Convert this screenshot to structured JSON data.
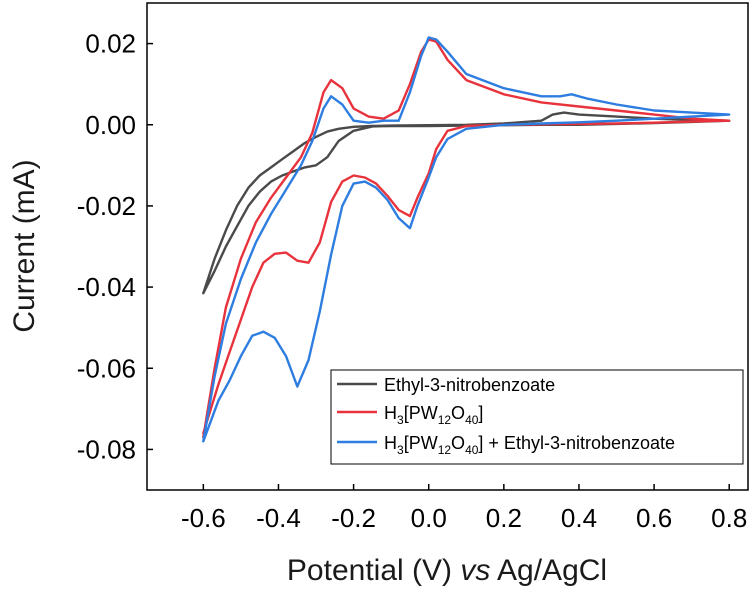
{
  "chart_data": {
    "type": "line",
    "title": "",
    "xlabel": {
      "prefix": "Potential (V) ",
      "italic": "vs",
      "suffix": " Ag/AgCl"
    },
    "ylabel": "Current (mA)",
    "xlim": [
      -0.75,
      0.85
    ],
    "ylim": [
      -0.09,
      0.03
    ],
    "x_ticks": [
      -0.6,
      -0.4,
      -0.2,
      0.0,
      0.2,
      0.4,
      0.6,
      0.8
    ],
    "x_tick_labels": [
      "-0.6",
      "-0.4",
      "-0.2",
      "0.0",
      "0.2",
      "0.4",
      "0.6",
      "0.8"
    ],
    "y_ticks": [
      0.02,
      0.0,
      -0.02,
      -0.04,
      -0.06,
      -0.08
    ],
    "y_tick_labels": [
      "0.02",
      "0.00",
      "-0.02",
      "-0.04",
      "-0.06",
      "-0.08"
    ],
    "grid": false,
    "legend_position": "bottom-right",
    "series": [
      {
        "name": "Ethyl-3-nitrobenzoate",
        "legend": [
          {
            "t": "Ethyl-3-nitrobenzoate"
          }
        ],
        "color": "#4a4a4a",
        "x": [
          -0.6,
          -0.57,
          -0.54,
          -0.51,
          -0.48,
          -0.45,
          -0.42,
          -0.39,
          -0.36,
          -0.33,
          -0.3,
          -0.27,
          -0.24,
          -0.2,
          -0.15,
          -0.1,
          0.0,
          0.1,
          0.2,
          0.3,
          0.33,
          0.36,
          0.4,
          0.5,
          0.6,
          0.7,
          0.8,
          0.7,
          0.6,
          0.5,
          0.4,
          0.3,
          0.2,
          0.1,
          0.0,
          -0.1,
          -0.15,
          -0.2,
          -0.24,
          -0.27,
          -0.3,
          -0.33,
          -0.36,
          -0.39,
          -0.42,
          -0.45,
          -0.48,
          -0.51,
          -0.54,
          -0.57,
          -0.6
        ],
        "y": [
          -0.0415,
          -0.033,
          -0.026,
          -0.02,
          -0.0155,
          -0.0125,
          -0.0105,
          -0.0085,
          -0.0065,
          -0.0045,
          -0.003,
          -0.0017,
          -0.001,
          -0.0005,
          -0.0003,
          -0.0002,
          -0.0001,
          0.0,
          0.0003,
          0.001,
          0.0025,
          0.003,
          0.0025,
          0.002,
          0.0015,
          0.0012,
          0.001,
          0.0007,
          0.0004,
          0.0002,
          0.0,
          0.0,
          -0.0001,
          -0.0002,
          -0.0003,
          -0.0003,
          -0.0004,
          -0.0015,
          -0.004,
          -0.008,
          -0.01,
          -0.0105,
          -0.0115,
          -0.0125,
          -0.014,
          -0.0165,
          -0.02,
          -0.025,
          -0.03,
          -0.036,
          -0.0415
        ]
      },
      {
        "name": "H3[PW12O40]",
        "legend": [
          {
            "t": "H"
          },
          {
            "t": "3",
            "sub": true
          },
          {
            "t": "[PW"
          },
          {
            "t": "12",
            "sub": true
          },
          {
            "t": "O"
          },
          {
            "t": "40",
            "sub": true
          },
          {
            "t": "]"
          }
        ],
        "color": "#e8323c",
        "x": [
          -0.6,
          -0.57,
          -0.54,
          -0.5,
          -0.46,
          -0.42,
          -0.38,
          -0.34,
          -0.31,
          -0.28,
          -0.26,
          -0.23,
          -0.2,
          -0.16,
          -0.12,
          -0.08,
          -0.05,
          -0.02,
          0.0,
          0.02,
          0.05,
          0.1,
          0.2,
          0.3,
          0.4,
          0.5,
          0.6,
          0.7,
          0.8,
          0.7,
          0.6,
          0.5,
          0.4,
          0.3,
          0.2,
          0.1,
          0.05,
          0.02,
          0.0,
          -0.03,
          -0.05,
          -0.08,
          -0.11,
          -0.14,
          -0.17,
          -0.2,
          -0.23,
          -0.26,
          -0.29,
          -0.32,
          -0.35,
          -0.38,
          -0.41,
          -0.44,
          -0.47,
          -0.5,
          -0.53,
          -0.56,
          -0.6
        ],
        "y": [
          -0.077,
          -0.06,
          -0.045,
          -0.033,
          -0.024,
          -0.018,
          -0.013,
          -0.008,
          -0.002,
          0.008,
          0.011,
          0.009,
          0.004,
          0.002,
          0.0015,
          0.0035,
          0.01,
          0.018,
          0.021,
          0.0205,
          0.016,
          0.011,
          0.0075,
          0.0055,
          0.0045,
          0.0035,
          0.0025,
          0.0015,
          0.001,
          0.0008,
          0.0005,
          0.0003,
          0.0002,
          0.0001,
          0.0,
          -0.0003,
          -0.0015,
          -0.006,
          -0.012,
          -0.018,
          -0.0225,
          -0.021,
          -0.0175,
          -0.0145,
          -0.013,
          -0.0125,
          -0.014,
          -0.019,
          -0.029,
          -0.034,
          -0.0335,
          -0.0315,
          -0.0318,
          -0.034,
          -0.04,
          -0.048,
          -0.056,
          -0.064,
          -0.076
        ]
      },
      {
        "name": "H3[PW12O40] + Ethyl-3-nitrobenzoate",
        "legend": [
          {
            "t": "H"
          },
          {
            "t": "3",
            "sub": true
          },
          {
            "t": "[PW"
          },
          {
            "t": "12",
            "sub": true
          },
          {
            "t": "O"
          },
          {
            "t": "40",
            "sub": true
          },
          {
            "t": "] + Ethyl-3-nitrobenzoate"
          }
        ],
        "color": "#2e7de0",
        "x": [
          -0.6,
          -0.57,
          -0.54,
          -0.5,
          -0.46,
          -0.42,
          -0.38,
          -0.34,
          -0.31,
          -0.28,
          -0.26,
          -0.23,
          -0.2,
          -0.16,
          -0.12,
          -0.08,
          -0.05,
          -0.02,
          0.0,
          0.02,
          0.05,
          0.1,
          0.2,
          0.3,
          0.35,
          0.38,
          0.42,
          0.5,
          0.6,
          0.7,
          0.8,
          0.7,
          0.6,
          0.5,
          0.4,
          0.3,
          0.2,
          0.1,
          0.05,
          0.02,
          0.0,
          -0.03,
          -0.05,
          -0.08,
          -0.11,
          -0.14,
          -0.17,
          -0.2,
          -0.23,
          -0.26,
          -0.29,
          -0.32,
          -0.35,
          -0.38,
          -0.41,
          -0.44,
          -0.47,
          -0.5,
          -0.53,
          -0.56,
          -0.6
        ],
        "y": [
          -0.078,
          -0.062,
          -0.049,
          -0.038,
          -0.029,
          -0.022,
          -0.016,
          -0.01,
          -0.004,
          0.004,
          0.007,
          0.005,
          0.001,
          0.0005,
          0.001,
          0.001,
          0.008,
          0.017,
          0.0215,
          0.021,
          0.018,
          0.0125,
          0.009,
          0.007,
          0.007,
          0.0075,
          0.0065,
          0.005,
          0.0035,
          0.003,
          0.0025,
          0.002,
          0.0015,
          0.001,
          0.0006,
          0.0003,
          0.0,
          -0.001,
          -0.0035,
          -0.008,
          -0.013,
          -0.02,
          -0.0255,
          -0.023,
          -0.0185,
          -0.0155,
          -0.014,
          -0.0145,
          -0.02,
          -0.032,
          -0.046,
          -0.058,
          -0.0645,
          -0.057,
          -0.0525,
          -0.051,
          -0.052,
          -0.057,
          -0.063,
          -0.068,
          -0.078
        ]
      }
    ]
  }
}
